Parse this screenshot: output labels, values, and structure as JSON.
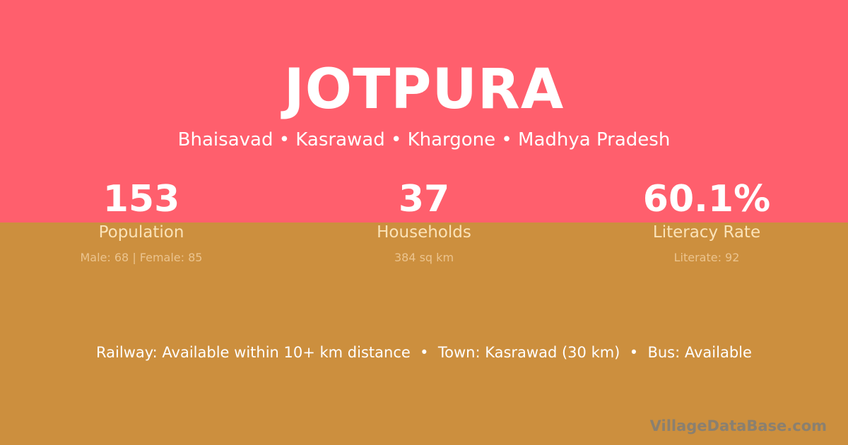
{
  "title": "JOTPURA",
  "location": "Bhaisavad • Kasrawad • Khargone • Madhya Pradesh",
  "stats": [
    {
      "value": "153",
      "label": "Population",
      "detail": "Male: 68 | Female: 85"
    },
    {
      "value": "37",
      "label": "Households",
      "detail": "384 sq km"
    },
    {
      "value": "60.1%",
      "label": "Literacy Rate",
      "detail": "Literate: 92"
    }
  ],
  "info": "Railway: Available within 10+ km distance  •  Town: Kasrawad (30 km)  •  Bus: Available",
  "watermark": "VillageDataBase.com",
  "colors": {
    "top": "#ff5f6d",
    "bottom": "#cc8f3e"
  }
}
